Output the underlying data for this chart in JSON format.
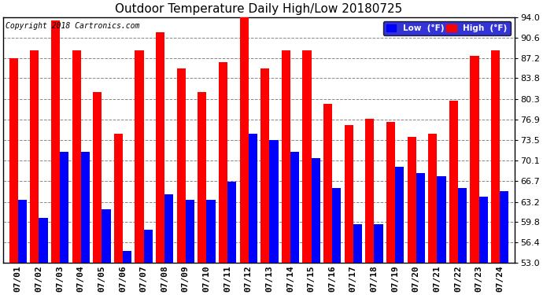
{
  "title": "Outdoor Temperature Daily High/Low 20180725",
  "copyright": "Copyright 2018 Cartronics.com",
  "legend_low": "Low  (°F)",
  "legend_high": "High  (°F)",
  "dates": [
    "07/01",
    "07/02",
    "07/03",
    "07/04",
    "07/05",
    "07/06",
    "07/07",
    "07/08",
    "07/09",
    "07/10",
    "07/11",
    "07/12",
    "07/13",
    "07/14",
    "07/15",
    "07/16",
    "07/17",
    "07/18",
    "07/19",
    "07/20",
    "07/21",
    "07/22",
    "07/23",
    "07/24"
  ],
  "highs": [
    87.2,
    88.5,
    93.5,
    88.5,
    81.5,
    74.5,
    88.5,
    91.5,
    85.5,
    81.5,
    86.5,
    94.0,
    85.5,
    88.5,
    88.5,
    79.5,
    76.0,
    77.0,
    76.5,
    74.0,
    74.5,
    80.0,
    87.5,
    88.5
  ],
  "lows": [
    63.5,
    60.5,
    71.5,
    71.5,
    62.0,
    55.0,
    58.5,
    64.5,
    63.5,
    63.5,
    66.5,
    74.5,
    73.5,
    71.5,
    70.5,
    65.5,
    59.5,
    59.5,
    69.0,
    68.0,
    67.5,
    65.5,
    64.0,
    65.0
  ],
  "ylim": [
    53.0,
    94.0
  ],
  "yticks": [
    53.0,
    56.4,
    59.8,
    63.2,
    66.7,
    70.1,
    73.5,
    76.9,
    80.3,
    83.8,
    87.2,
    90.6,
    94.0
  ],
  "bar_color_high": "#ff0000",
  "bar_color_low": "#0000ff",
  "background_color": "#ffffff",
  "plot_bg_color": "#ffffff",
  "grid_color": "#888888",
  "title_color": "#000000",
  "title_fontsize": 11,
  "tick_fontsize": 8,
  "bar_width": 0.42,
  "legend_bg": "#0000cc",
  "legend_text_color": "#ffffff"
}
